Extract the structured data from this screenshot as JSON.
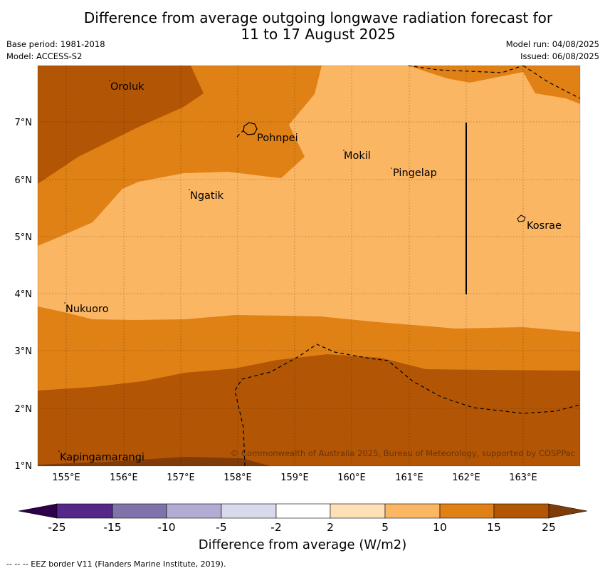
{
  "title": {
    "line1": "Difference from average outgoing longwave radiation forecast for",
    "line2": "11 to 17 August 2025"
  },
  "meta_left": {
    "base_period": "Base period: 1981-2018",
    "model": "Model: ACCESS-S2"
  },
  "meta_right": {
    "model_run": "Model run: 04/08/2025",
    "issued": "Issued: 06/08/2025"
  },
  "map": {
    "lon_ticks": [
      "155°E",
      "156°E",
      "157°E",
      "158°E",
      "159°E",
      "160°E",
      "161°E",
      "162°E",
      "163°E"
    ],
    "lat_ticks": [
      "7°N",
      "6°N",
      "5°N",
      "4°N",
      "3°N",
      "2°N",
      "1°N"
    ],
    "places": [
      "Oroluk",
      "Pohnpei",
      "Mokil",
      "Pingelap",
      "Ngatik",
      "Kosrae",
      "Nukuoro",
      "Kapingamarangi"
    ],
    "copyright": "© Commonwealth of Australia 2025, Bureau of Meteorology, supported by COSPPac",
    "fill_colors": {
      "5_to_10": "#fbb664",
      "10_to_15": "#e08115",
      "15_to_25": "#b25605",
      "gt_25": "#7f3b08"
    }
  },
  "colorbar": {
    "ticks": [
      "-25",
      "-15",
      "-10",
      "-5",
      "-2",
      "2",
      "5",
      "10",
      "15",
      "25"
    ],
    "colors": [
      "#2d004b",
      "#542788",
      "#8073ac",
      "#b2abd2",
      "#d8daeb",
      "#ffffff",
      "#fee0b6",
      "#fbb664",
      "#e08115",
      "#b25605",
      "#7f3b08"
    ],
    "label": "Difference from average (W/m2)"
  },
  "footer": "--  --  -- EEZ border V11 (Flanders Marine Institute, 2019)."
}
